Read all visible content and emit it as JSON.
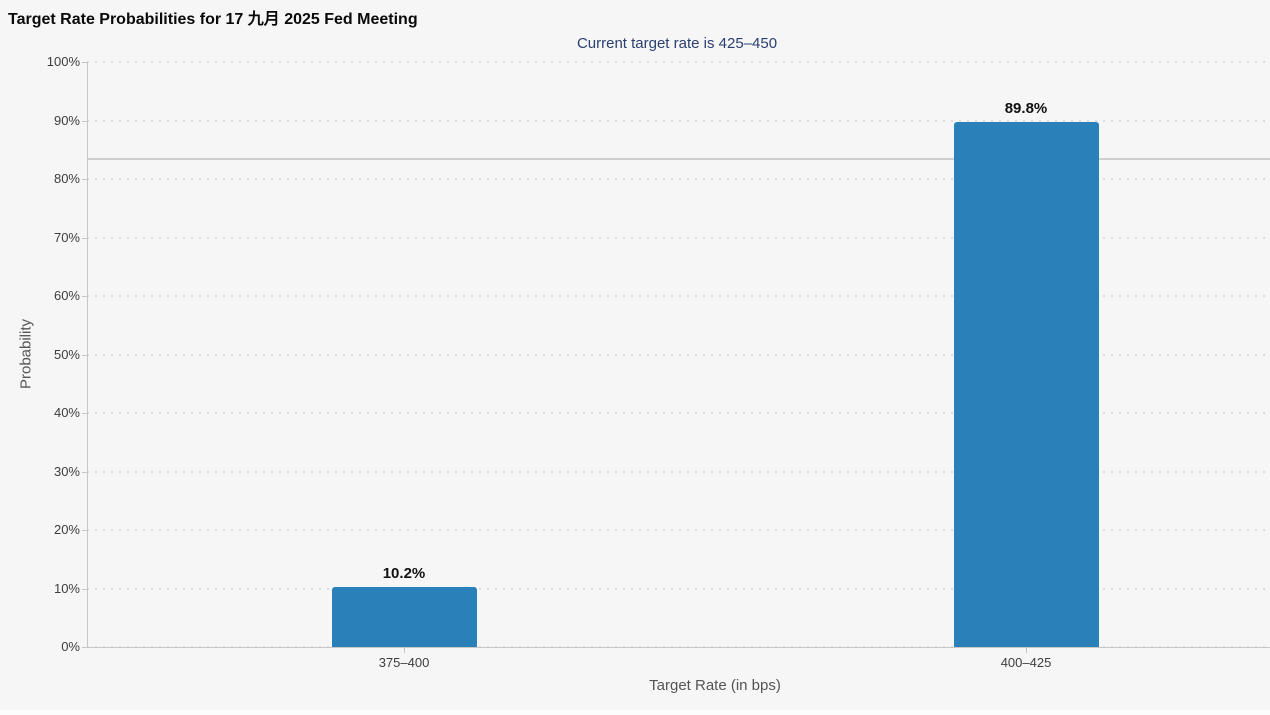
{
  "chart_data": {
    "type": "bar",
    "title": "Target Rate Probabilities for 17 九月 2025 Fed Meeting",
    "subtitle": "Current target rate is 425–450",
    "categories": [
      "375–400",
      "400–425"
    ],
    "values": [
      10.2,
      89.8
    ],
    "value_labels": [
      "10.2%",
      "89.8%"
    ],
    "xlabel": "Target Rate (in bps)",
    "ylabel": "Probability",
    "ylim": [
      0,
      100
    ],
    "ytick_step": 10,
    "ytick_labels": [
      "0%",
      "10%",
      "20%",
      "30%",
      "40%",
      "50%",
      "60%",
      "70%",
      "80%",
      "90%",
      "100%"
    ],
    "grid": "dotted horizontal, on",
    "legend": "none",
    "reference_line_pct": 83.4,
    "colors": {
      "bar": "#2a80b9",
      "title": "#0a0a0a",
      "subtitle": "#2b406f",
      "axistext": "#3d3d3d",
      "axistitle": "#555555",
      "grid": "#dcdcdc",
      "axisline": "#c6c6c6",
      "refline": "#cfcfcf",
      "datalabel": "#111111",
      "bg": "#f6f6f7"
    }
  }
}
